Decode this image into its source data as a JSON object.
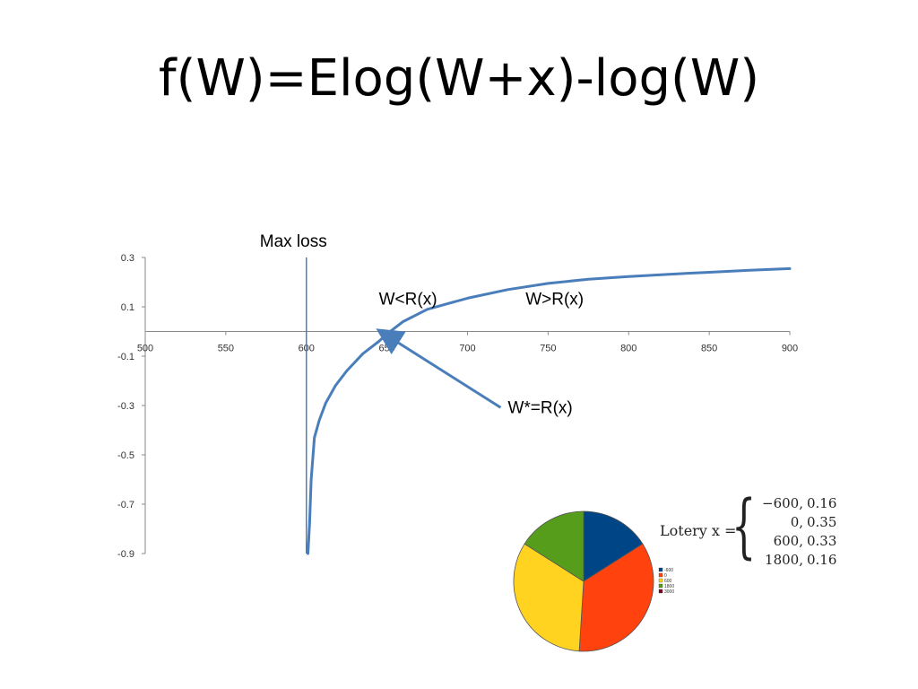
{
  "slide": {
    "title": "f(W)=Elog(W+x)-log(W)"
  },
  "chart_data": [
    {
      "type": "line",
      "title": "",
      "xlabel": "",
      "ylabel": "",
      "xlim": [
        500,
        900
      ],
      "ylim": [
        -0.9,
        0.3
      ],
      "x_ticks": [
        "500",
        "550",
        "600",
        "650",
        "700",
        "750",
        "800",
        "850",
        "900"
      ],
      "y_ticks": [
        "0.3",
        "0.1",
        "-0.1",
        "-0.3",
        "-0.5",
        "-0.7",
        "-0.9"
      ],
      "y_tick_values": [
        0.3,
        0.1,
        -0.1,
        -0.3,
        -0.5,
        -0.7,
        -0.9
      ],
      "grid": false,
      "series": [
        {
          "color": "#4a7ebb",
          "x": [
            601,
            602,
            603,
            605,
            608,
            612,
            618,
            625,
            635,
            645,
            650,
            660,
            675,
            700,
            725,
            750,
            775,
            800,
            825,
            850,
            875,
            900
          ],
          "y": [
            -0.9,
            -0.78,
            -0.6,
            -0.43,
            -0.36,
            -0.29,
            -0.22,
            -0.16,
            -0.09,
            -0.04,
            -0.01,
            0.04,
            0.09,
            0.135,
            0.17,
            0.195,
            0.212,
            0.223,
            0.232,
            0.24,
            0.248,
            0.255
          ]
        }
      ],
      "vertical_line": {
        "x": 600,
        "label": "Max loss",
        "color": "#4a7ebb"
      },
      "annotations": [
        {
          "text": "W<R(x)",
          "x": 645,
          "y": 0.11
        },
        {
          "text": "W>R(x)",
          "x": 736,
          "y": 0.11
        },
        {
          "text": "W*=R(x)",
          "x": 725,
          "y": -0.33,
          "arrow_to": {
            "x": 646,
            "y": 0.0
          }
        }
      ]
    },
    {
      "type": "pie",
      "labels": [
        "-600",
        "0",
        "600",
        "1800",
        "3000"
      ],
      "values": [
        0.16,
        0.35,
        0.33,
        0.16,
        0.0
      ],
      "colors": [
        "#004586",
        "#ff420e",
        "#ffd320",
        "#579d1c",
        "#7e0021"
      ]
    }
  ],
  "lottery": {
    "label": "Lotery x =",
    "rows": [
      {
        "value": "−600,",
        "prob": "0.16"
      },
      {
        "value": "0,",
        "prob": "0.35"
      },
      {
        "value": "600,",
        "prob": "0.33"
      },
      {
        "value": "1800,",
        "prob": "0.16"
      }
    ]
  }
}
